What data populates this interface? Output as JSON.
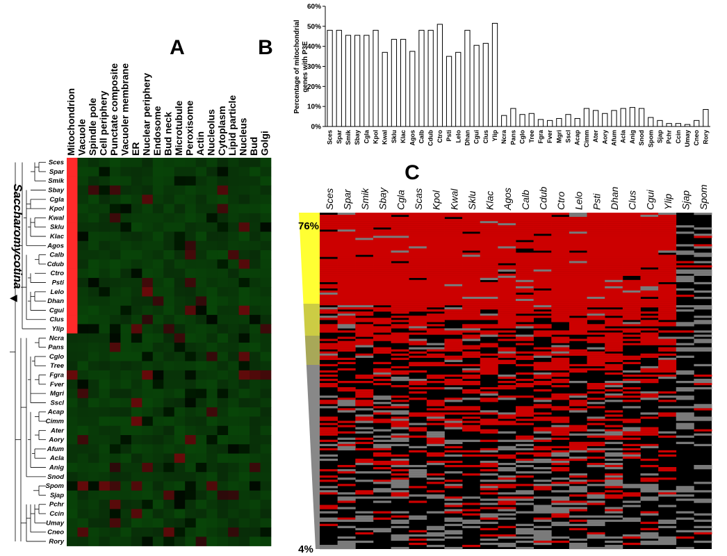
{
  "panels": {
    "A": "A",
    "B": "B",
    "C": "C"
  },
  "clade_label": "Saccharomycotina",
  "species": [
    "Sces",
    "Spar",
    "Smik",
    "Sbay",
    "Cgla",
    "Kpol",
    "Kwal",
    "Sklu",
    "Klac",
    "Agos",
    "Calb",
    "Cdub",
    "Ctro",
    "Psti",
    "Lelo",
    "Dhan",
    "Cgui",
    "Clus",
    "Ylip",
    "Ncra",
    "Pans",
    "Cglo",
    "Tree",
    "Fgra",
    "Fver",
    "Mgri",
    "Sscl",
    "Acap",
    "Cimm",
    "Ater",
    "Aory",
    "Afum",
    "Acla",
    "Anig",
    "Snod",
    "Spom",
    "Sjap",
    "Pchr",
    "Ccin",
    "Umay",
    "Cneo",
    "Rory"
  ],
  "localizations": [
    "Mitochondrion",
    "Vacuole",
    "Spindle pole",
    "Cell periphery",
    "Punctate composite",
    "Vacuoler membrane",
    "ER",
    "Nuclear periphery",
    "Endosome",
    "Bud neck",
    "Microtubule",
    "Peroxisome",
    "Actin",
    "Nucleolus",
    "Cytoplasm",
    "Lipid particle",
    "Nucleus",
    "Bud",
    "Golgi"
  ],
  "panel_c_columns": [
    "Sces",
    "Spar",
    "Smik",
    "Sbay",
    "Cgla",
    "Scas",
    "Kpol",
    "Kwal",
    "Sklu",
    "Klac",
    "Agos",
    "Calb",
    "Cdub",
    "Ctro",
    "Lelo",
    "Psti",
    "Dhan",
    "Clus",
    "Cgui",
    "Ylip",
    "Sjap",
    "Spom"
  ],
  "gradient_labels": {
    "top": "76%",
    "bottom": "4%"
  },
  "colors": {
    "mito_strip": "#ff2a2a",
    "heatmap_bg": "#0a3a0a",
    "red_cell": "#cc0000",
    "gradient_top": "#ffff33",
    "gradient_bottom": "#808080"
  },
  "chart_data": [
    {
      "type": "bar",
      "panel": "B",
      "ylabel": "Percentage of mitochondrial genes with P3E",
      "ylim": [
        0,
        60
      ],
      "yticks": [
        "0%",
        "10%",
        "20%",
        "30%",
        "40%",
        "50%",
        "60%"
      ],
      "categories": [
        "Sces",
        "Spar",
        "Smik",
        "Sbay",
        "Cgla",
        "Kpol",
        "Kwal",
        "Sklu",
        "Klac",
        "Agos",
        "Calb",
        "Cdub",
        "Ctro",
        "Psti",
        "Lelo",
        "Dhan",
        "Cgui",
        "Clus",
        "Ylip",
        "Ncra",
        "Pans",
        "Cglo",
        "Tree",
        "Fgra",
        "Fver",
        "Mgri",
        "Sscl",
        "Acap",
        "Cimm",
        "Ater",
        "Aory",
        "Afum",
        "Acla",
        "Anig",
        "Snod",
        "Spom",
        "Sjap",
        "Pchr",
        "Ccin",
        "Umay",
        "Cneo",
        "Rory"
      ],
      "values": [
        48,
        48,
        45.5,
        45.5,
        45.5,
        48,
        37,
        43.5,
        43.5,
        37.5,
        48,
        48,
        51,
        35,
        37,
        48,
        40.5,
        41.5,
        51.5,
        5.5,
        9,
        6,
        6.5,
        3.5,
        3,
        4,
        6,
        4,
        9,
        8,
        6.5,
        8,
        9,
        9.5,
        9,
        4.5,
        3,
        1.5,
        1.5,
        1,
        3,
        8.5
      ]
    },
    {
      "type": "heatmap",
      "panel": "A",
      "rows": "species",
      "columns": "localizations"
    },
    {
      "type": "heatmap",
      "panel": "C",
      "columns": "panel_c_columns"
    }
  ]
}
